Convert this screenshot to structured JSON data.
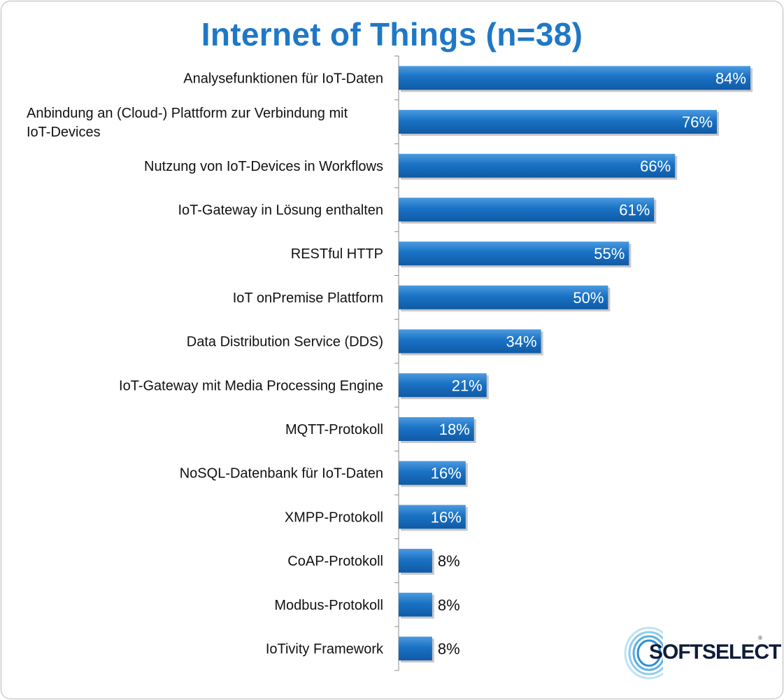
{
  "chart_data": {
    "type": "bar",
    "orientation": "horizontal",
    "title": "Internet of Things (n=38)",
    "categories": [
      "Analysefunktionen für IoT-Daten",
      [
        "Anbindung an (Cloud-) Plattform zur Verbindung mit",
        "IoT-Devices"
      ],
      "Nutzung von IoT-Devices in Workflows",
      "IoT-Gateway in Lösung enthalten",
      "RESTful HTTP",
      "IoT onPremise Plattform",
      "Data Distribution Service (DDS)",
      "IoT-Gateway mit Media Processing Engine",
      "MQTT-Protokoll",
      "NoSQL-Datenbank für IoT-Daten",
      "XMPP-Protokoll",
      "CoAP-Protokoll",
      "Modbus-Protokoll",
      "IoTivity Framework"
    ],
    "values": [
      84,
      76,
      66,
      61,
      55,
      50,
      34,
      21,
      18,
      16,
      16,
      8,
      8,
      8
    ],
    "value_labels": [
      "84%",
      "76%",
      "66%",
      "61%",
      "55%",
      "50%",
      "34%",
      "21%",
      "18%",
      "16%",
      "16%",
      "8%",
      "8%",
      "8%"
    ],
    "unit": "%",
    "xlim": [
      0,
      84
    ],
    "grid": false,
    "legend": "none",
    "bar_color": "#1a72c4"
  },
  "logo": {
    "text": "SOFTSELECT",
    "mark": "®"
  }
}
